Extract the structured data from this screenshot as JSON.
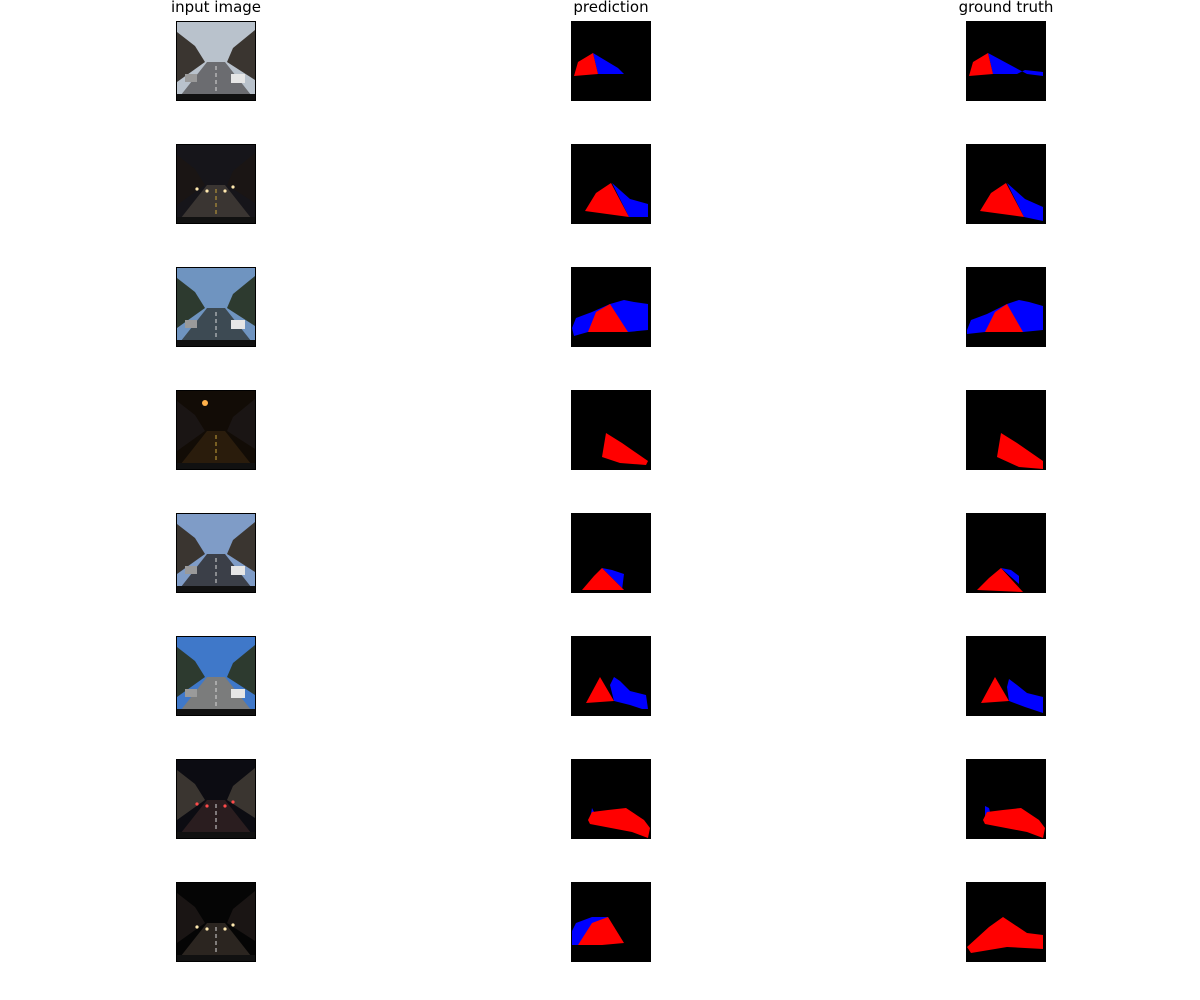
{
  "columns": {
    "input": "input image",
    "prediction": "prediction",
    "ground_truth": "ground truth"
  },
  "colors": {
    "mask_background": "#000000",
    "class_red": "#ff0000",
    "class_blue": "#0000ff"
  },
  "rows": [
    {
      "scene": "daytime city street with parked cars",
      "sky": "#b9c2cc",
      "road": "#6b6c70"
    },
    {
      "scene": "night street with street lights",
      "sky": "#16151a",
      "road": "#3a3532"
    },
    {
      "scene": "highway under blue sky",
      "sky": "#6f94c0",
      "road": "#3d4a53"
    },
    {
      "scene": "dark street with orange lamp",
      "sky": "#120c06",
      "road": "#2a1c0c"
    },
    {
      "scene": "dusk road with traffic light and cars",
      "sky": "#7f9cc7",
      "road": "#3b3f48"
    },
    {
      "scene": "bright highway with cars",
      "sky": "#3f78c9",
      "road": "#7b7c7c"
    },
    {
      "scene": "night traffic with brake lights",
      "sky": "#0c0c12",
      "road": "#2a1d1f"
    },
    {
      "scene": "very dark road with headlights",
      "sky": "#050505",
      "road": "#2b2520"
    }
  ]
}
